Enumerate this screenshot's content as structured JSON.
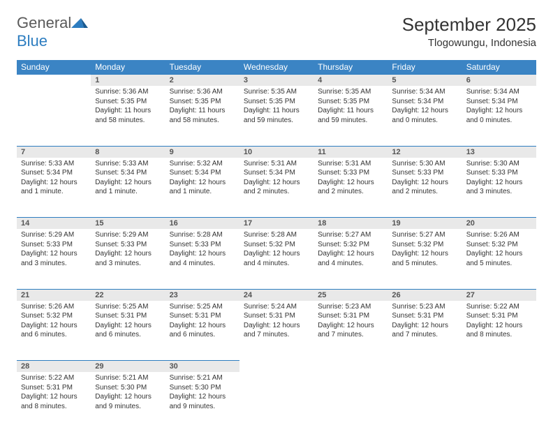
{
  "logo": {
    "general": "General",
    "blue": "Blue"
  },
  "title": "September 2025",
  "location": "Tlogowungu, Indonesia",
  "colors": {
    "header_bg": "#3b84c4",
    "header_text": "#ffffff",
    "daynum_bg": "#e9e9e9",
    "daynum_border": "#2d7dc0",
    "text": "#333333",
    "logo_grey": "#5a5a5a",
    "logo_blue": "#2d7dc0"
  },
  "weekdays": [
    "Sunday",
    "Monday",
    "Tuesday",
    "Wednesday",
    "Thursday",
    "Friday",
    "Saturday"
  ],
  "weeks": [
    [
      null,
      {
        "n": "1",
        "sr": "Sunrise: 5:36 AM",
        "ss": "Sunset: 5:35 PM",
        "dl": "Daylight: 11 hours and 58 minutes."
      },
      {
        "n": "2",
        "sr": "Sunrise: 5:36 AM",
        "ss": "Sunset: 5:35 PM",
        "dl": "Daylight: 11 hours and 58 minutes."
      },
      {
        "n": "3",
        "sr": "Sunrise: 5:35 AM",
        "ss": "Sunset: 5:35 PM",
        "dl": "Daylight: 11 hours and 59 minutes."
      },
      {
        "n": "4",
        "sr": "Sunrise: 5:35 AM",
        "ss": "Sunset: 5:35 PM",
        "dl": "Daylight: 11 hours and 59 minutes."
      },
      {
        "n": "5",
        "sr": "Sunrise: 5:34 AM",
        "ss": "Sunset: 5:34 PM",
        "dl": "Daylight: 12 hours and 0 minutes."
      },
      {
        "n": "6",
        "sr": "Sunrise: 5:34 AM",
        "ss": "Sunset: 5:34 PM",
        "dl": "Daylight: 12 hours and 0 minutes."
      }
    ],
    [
      {
        "n": "7",
        "sr": "Sunrise: 5:33 AM",
        "ss": "Sunset: 5:34 PM",
        "dl": "Daylight: 12 hours and 1 minute."
      },
      {
        "n": "8",
        "sr": "Sunrise: 5:33 AM",
        "ss": "Sunset: 5:34 PM",
        "dl": "Daylight: 12 hours and 1 minute."
      },
      {
        "n": "9",
        "sr": "Sunrise: 5:32 AM",
        "ss": "Sunset: 5:34 PM",
        "dl": "Daylight: 12 hours and 1 minute."
      },
      {
        "n": "10",
        "sr": "Sunrise: 5:31 AM",
        "ss": "Sunset: 5:34 PM",
        "dl": "Daylight: 12 hours and 2 minutes."
      },
      {
        "n": "11",
        "sr": "Sunrise: 5:31 AM",
        "ss": "Sunset: 5:33 PM",
        "dl": "Daylight: 12 hours and 2 minutes."
      },
      {
        "n": "12",
        "sr": "Sunrise: 5:30 AM",
        "ss": "Sunset: 5:33 PM",
        "dl": "Daylight: 12 hours and 2 minutes."
      },
      {
        "n": "13",
        "sr": "Sunrise: 5:30 AM",
        "ss": "Sunset: 5:33 PM",
        "dl": "Daylight: 12 hours and 3 minutes."
      }
    ],
    [
      {
        "n": "14",
        "sr": "Sunrise: 5:29 AM",
        "ss": "Sunset: 5:33 PM",
        "dl": "Daylight: 12 hours and 3 minutes."
      },
      {
        "n": "15",
        "sr": "Sunrise: 5:29 AM",
        "ss": "Sunset: 5:33 PM",
        "dl": "Daylight: 12 hours and 3 minutes."
      },
      {
        "n": "16",
        "sr": "Sunrise: 5:28 AM",
        "ss": "Sunset: 5:33 PM",
        "dl": "Daylight: 12 hours and 4 minutes."
      },
      {
        "n": "17",
        "sr": "Sunrise: 5:28 AM",
        "ss": "Sunset: 5:32 PM",
        "dl": "Daylight: 12 hours and 4 minutes."
      },
      {
        "n": "18",
        "sr": "Sunrise: 5:27 AM",
        "ss": "Sunset: 5:32 PM",
        "dl": "Daylight: 12 hours and 4 minutes."
      },
      {
        "n": "19",
        "sr": "Sunrise: 5:27 AM",
        "ss": "Sunset: 5:32 PM",
        "dl": "Daylight: 12 hours and 5 minutes."
      },
      {
        "n": "20",
        "sr": "Sunrise: 5:26 AM",
        "ss": "Sunset: 5:32 PM",
        "dl": "Daylight: 12 hours and 5 minutes."
      }
    ],
    [
      {
        "n": "21",
        "sr": "Sunrise: 5:26 AM",
        "ss": "Sunset: 5:32 PM",
        "dl": "Daylight: 12 hours and 6 minutes."
      },
      {
        "n": "22",
        "sr": "Sunrise: 5:25 AM",
        "ss": "Sunset: 5:31 PM",
        "dl": "Daylight: 12 hours and 6 minutes."
      },
      {
        "n": "23",
        "sr": "Sunrise: 5:25 AM",
        "ss": "Sunset: 5:31 PM",
        "dl": "Daylight: 12 hours and 6 minutes."
      },
      {
        "n": "24",
        "sr": "Sunrise: 5:24 AM",
        "ss": "Sunset: 5:31 PM",
        "dl": "Daylight: 12 hours and 7 minutes."
      },
      {
        "n": "25",
        "sr": "Sunrise: 5:23 AM",
        "ss": "Sunset: 5:31 PM",
        "dl": "Daylight: 12 hours and 7 minutes."
      },
      {
        "n": "26",
        "sr": "Sunrise: 5:23 AM",
        "ss": "Sunset: 5:31 PM",
        "dl": "Daylight: 12 hours and 7 minutes."
      },
      {
        "n": "27",
        "sr": "Sunrise: 5:22 AM",
        "ss": "Sunset: 5:31 PM",
        "dl": "Daylight: 12 hours and 8 minutes."
      }
    ],
    [
      {
        "n": "28",
        "sr": "Sunrise: 5:22 AM",
        "ss": "Sunset: 5:31 PM",
        "dl": "Daylight: 12 hours and 8 minutes."
      },
      {
        "n": "29",
        "sr": "Sunrise: 5:21 AM",
        "ss": "Sunset: 5:30 PM",
        "dl": "Daylight: 12 hours and 9 minutes."
      },
      {
        "n": "30",
        "sr": "Sunrise: 5:21 AM",
        "ss": "Sunset: 5:30 PM",
        "dl": "Daylight: 12 hours and 9 minutes."
      },
      null,
      null,
      null,
      null
    ]
  ]
}
